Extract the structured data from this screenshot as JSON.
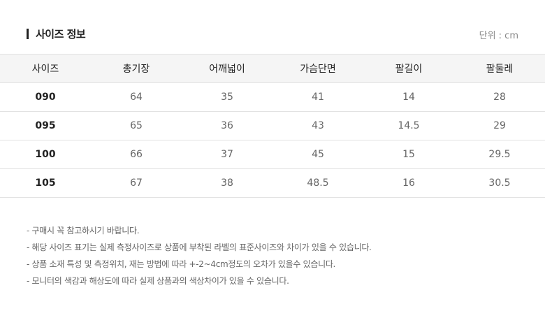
{
  "header": {
    "title": "사이즈 정보",
    "unit": "단위 : cm"
  },
  "table": {
    "columns": [
      "사이즈",
      "총기장",
      "어깨넓이",
      "가슴단면",
      "팔길이",
      "팔둘레"
    ],
    "rows": [
      [
        "090",
        "64",
        "35",
        "41",
        "14",
        "28"
      ],
      [
        "095",
        "65",
        "36",
        "43",
        "14.5",
        "29"
      ],
      [
        "100",
        "66",
        "37",
        "45",
        "15",
        "29.5"
      ],
      [
        "105",
        "67",
        "38",
        "48.5",
        "16",
        "30.5"
      ]
    ]
  },
  "notes": [
    "- 구매시 꼭 참고하시기 바랍니다.",
    "- 해당 사이즈 표기는 실제 측정사이즈로 상품에 부착된 라벨의 표준사이즈와 차이가 있을 수 있습니다.",
    "- 상품 소재 특성 및 측정위치, 재는 방법에 따라 +-2~4cm정도의 오차가 있을수 있습니다.",
    "- 모니터의 색감과 해상도에 따라 실제 상품과의 색상차이가 있을 수 있습니다."
  ]
}
